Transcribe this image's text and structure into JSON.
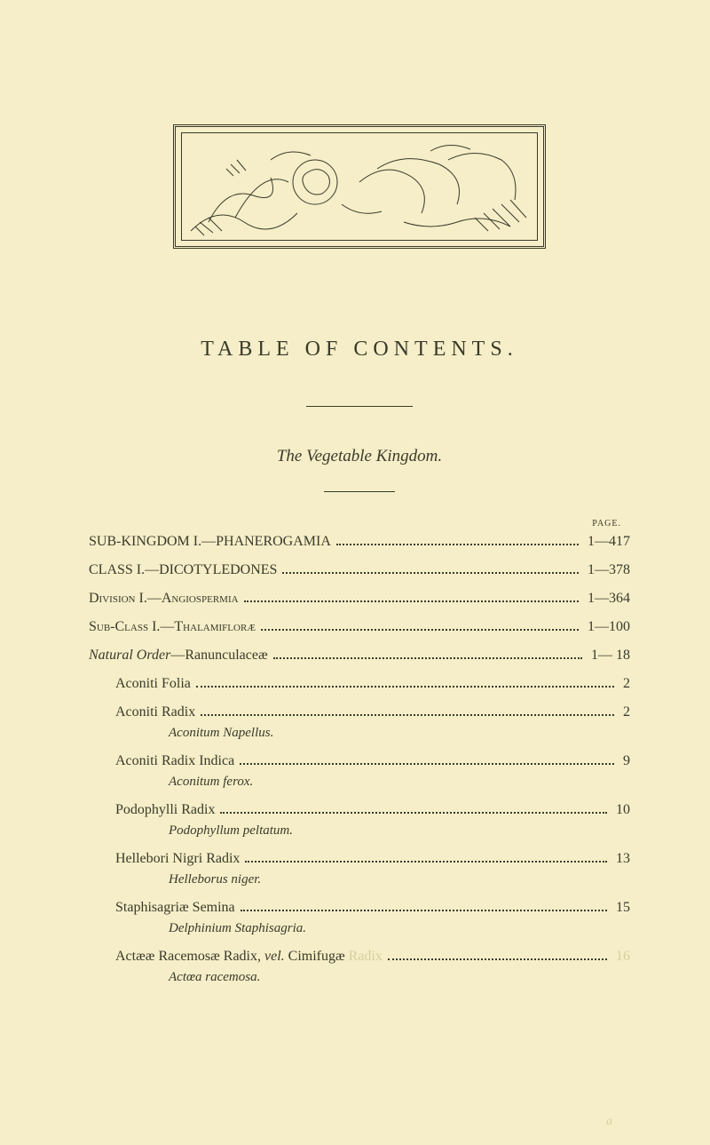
{
  "ornament": {
    "stroke": "#3a3a2a"
  },
  "heading": "TABLE OF CONTENTS.",
  "subtitle": "The Vegetable Kingdom.",
  "page_label": "PAGE.",
  "entries": [
    {
      "label": "SUB-KINGDOM I.—PHANEROGAMIA",
      "page": "1—417",
      "indent": 0,
      "style": "plain"
    },
    {
      "label": "CLASS I.—DICOTYLEDONES",
      "page": "1—378",
      "indent": 0,
      "style": "plain"
    },
    {
      "label_pre": "Division",
      "label_post": " I.—Angiospermia",
      "page": "1—364",
      "indent": 0,
      "style": "smallcaps"
    },
    {
      "label_pre": "Sub-Class",
      "label_post": " I.—Thalamifloræ",
      "page": "1—100",
      "indent": 0,
      "style": "smallcaps"
    },
    {
      "label_pre": "Natural Order",
      "label_post": "—Ranunculaceæ",
      "page": "1— 18",
      "indent": 0,
      "style": "mixed"
    },
    {
      "label": "Aconiti Folia",
      "page": "2",
      "indent": 1,
      "style": "plain"
    },
    {
      "label": "Aconiti Radix",
      "page": "2",
      "indent": 1,
      "style": "plain",
      "italic_after": "Aconitum Napellus."
    },
    {
      "label": "Aconiti Radix Indica",
      "page": "9",
      "indent": 1,
      "style": "plain",
      "italic_after": "Aconitum ferox."
    },
    {
      "label": "Podophylli Radix",
      "page": "10",
      "indent": 1,
      "style": "plain",
      "italic_after": "Podophyllum peltatum."
    },
    {
      "label": "Hellebori Nigri Radix",
      "page": "13",
      "indent": 1,
      "style": "plain",
      "italic_after": "Helleborus niger."
    },
    {
      "label": "Staphisagriæ Semina",
      "page": "15",
      "indent": 1,
      "style": "plain",
      "italic_after": "Delphinium Staphisagria."
    },
    {
      "label_html": "Actææ Racemosæ Radix, <i>vel.</i> Cimifugæ ",
      "faded_suffix": "Radix",
      "page": "16",
      "page_faded": true,
      "indent": 1,
      "style": "plain",
      "italic_after": "Actœa racemosa."
    }
  ],
  "bottom_mark": "a"
}
